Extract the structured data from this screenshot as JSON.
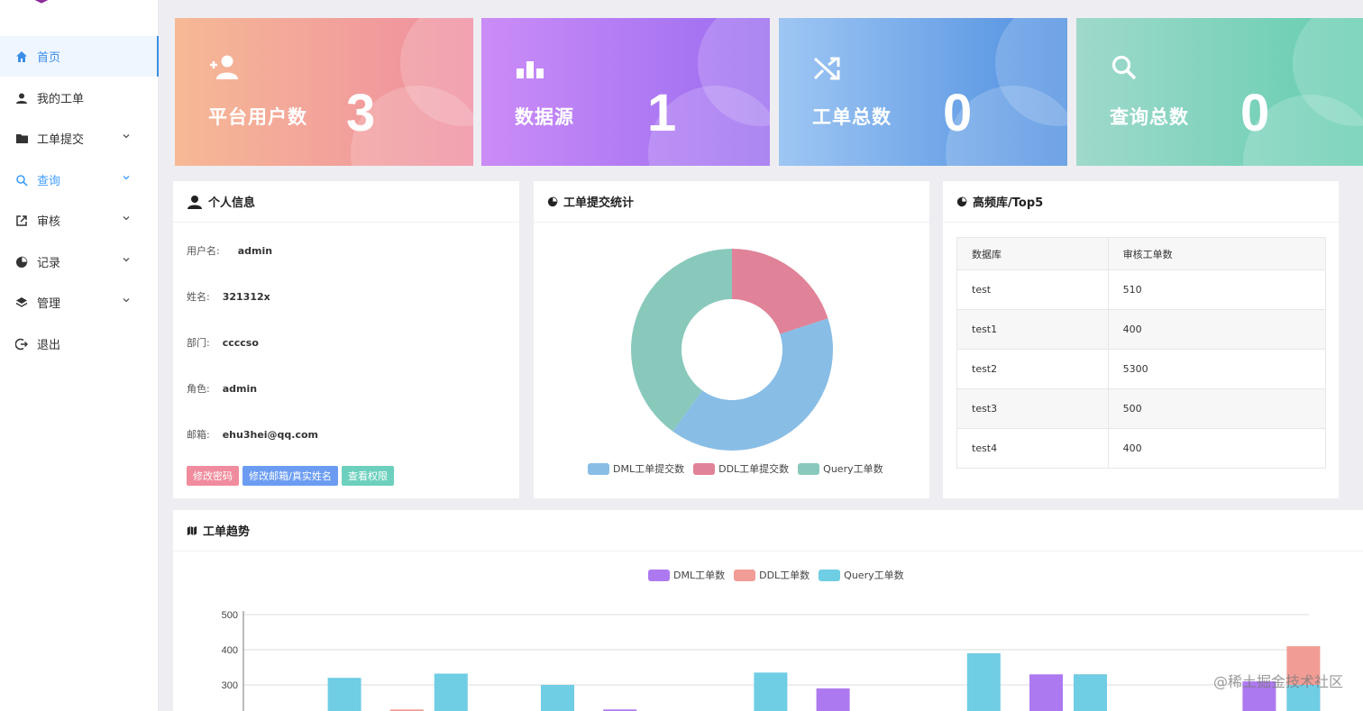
{
  "sidebar": {
    "items": [
      {
        "label": "首页",
        "icon": "home-icon"
      },
      {
        "label": "我的工单",
        "icon": "user-icon"
      },
      {
        "label": "工单提交",
        "icon": "folder-icon"
      },
      {
        "label": "查询",
        "icon": "search-icon"
      },
      {
        "label": "审核",
        "icon": "external-link-icon"
      },
      {
        "label": "记录",
        "icon": "pie-chart-icon"
      },
      {
        "label": "管理",
        "icon": "layers-icon"
      },
      {
        "label": "退出",
        "icon": "logout-icon"
      }
    ]
  },
  "cards": [
    {
      "label": "平台用户数",
      "value": "3",
      "icon": "add-user-icon",
      "gradient": [
        "#f6b995",
        "#ef8da0"
      ]
    },
    {
      "label": "数据源",
      "value": "1",
      "icon": "bar-chart-icon",
      "gradient": [
        "#cb8cf7",
        "#9a6cf0"
      ]
    },
    {
      "label": "工单总数",
      "value": "0",
      "icon": "shuffle-icon",
      "gradient": [
        "#9ec6f3",
        "#4f8fe0"
      ]
    },
    {
      "label": "查询总数",
      "value": "0",
      "icon": "search-icon",
      "gradient": [
        "#9fd9cc",
        "#64cdb0"
      ]
    }
  ],
  "profile": {
    "title": "个人信息",
    "fields": [
      {
        "label": "用户名:",
        "value": "admin"
      },
      {
        "label": "姓名:",
        "value": "321312x"
      },
      {
        "label": "部门:",
        "value": "ccccso"
      },
      {
        "label": "角色:",
        "value": "admin"
      },
      {
        "label": "邮箱:",
        "value": "ehu3hei@qq.com"
      }
    ],
    "buttons": [
      {
        "label": "修改密码",
        "color": "#f08c9d"
      },
      {
        "label": "修改邮箱/真实姓名",
        "color": "#6b9cf2"
      },
      {
        "label": "查看权限",
        "color": "#6dd0be"
      }
    ]
  },
  "stats": {
    "title": "工单提交统计"
  },
  "top5": {
    "title": "高频库/Top5",
    "headers": [
      "数据库",
      "审核工单数"
    ],
    "rows": [
      [
        "test",
        "510"
      ],
      [
        "test1",
        "400"
      ],
      [
        "test2",
        "5300"
      ],
      [
        "test3",
        "500"
      ],
      [
        "test4",
        "400"
      ]
    ]
  },
  "trend": {
    "title": "工单趋势"
  },
  "chart_data": [
    {
      "type": "pie",
      "labels": [
        "DML工单提交数",
        "DDL工单提交数",
        "Query工单数"
      ],
      "values": [
        40,
        20,
        40
      ],
      "colors": [
        "#88bde6",
        "#e08298",
        "#89c9bc"
      ],
      "donut": true,
      "legend": "bottom"
    },
    {
      "type": "bar",
      "series": [
        {
          "name": "DML工单数",
          "color": "#ad79f0",
          "values": [
            null,
            null,
            null,
            230,
            null,
            290,
            null,
            330,
            null,
            310
          ]
        },
        {
          "name": "DDL工单数",
          "color": "#f19d96",
          "values": [
            null,
            230,
            null,
            null,
            null,
            null,
            null,
            330,
            null,
            410
          ]
        },
        {
          "name": "Query工单数",
          "color": "#6fcde4",
          "values": [
            320,
            332,
            300,
            null,
            335,
            null,
            390,
            330,
            null,
            300
          ]
        }
      ],
      "yticks": [
        300,
        400,
        500
      ],
      "ylim": [
        200,
        500
      ],
      "legend": "top",
      "grid": true
    }
  ],
  "watermark": "@稀土掘金技术社区"
}
